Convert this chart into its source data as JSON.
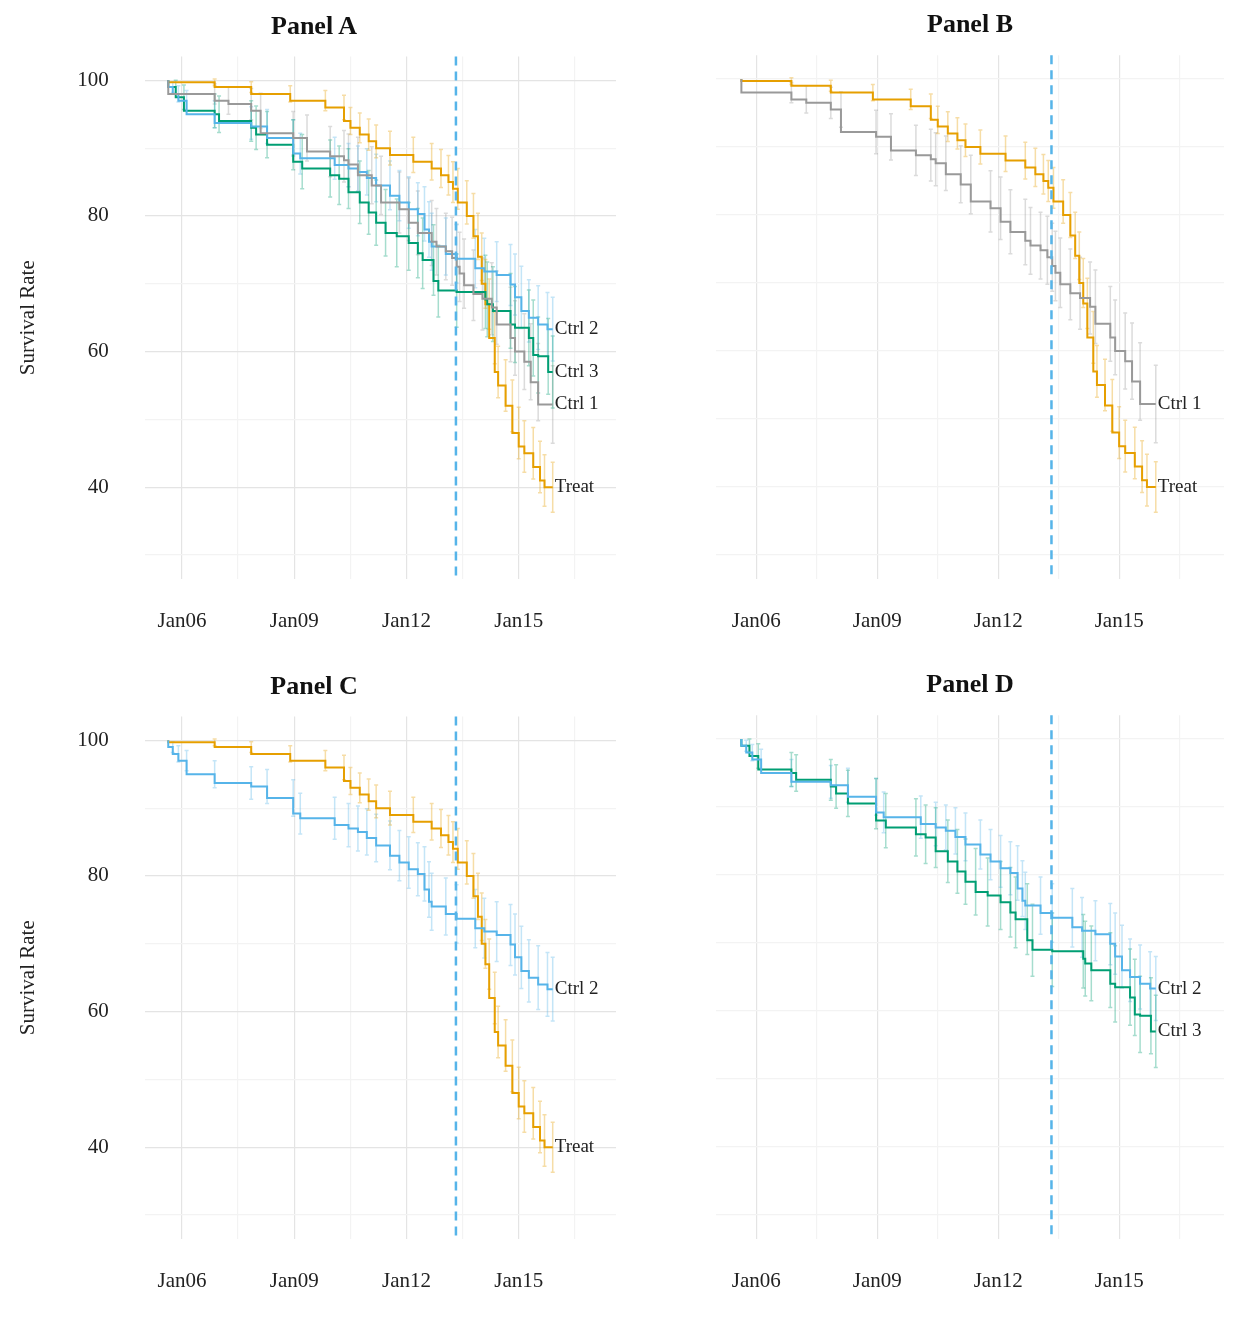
{
  "chart_data": [
    {
      "type": "step",
      "title": "Panel A",
      "ylabel": "Survival Rate",
      "xlim": [
        "2005-01-01",
        "2017-08-08"
      ],
      "ylim": [
        26.5,
        103.5
      ],
      "grid": true,
      "xticks": [
        {
          "value": "2006-01-01",
          "label": "Jan06"
        },
        {
          "value": "2007-07-02",
          "label": null
        },
        {
          "value": "2009-01-01",
          "label": "Jan09"
        },
        {
          "value": "2010-07-02",
          "label": null
        },
        {
          "value": "2012-01-01",
          "label": "Jan12"
        },
        {
          "value": "2013-07-02",
          "label": null
        },
        {
          "value": "2015-01-01",
          "label": "Jan15"
        },
        {
          "value": "2016-07-02",
          "label": null
        }
      ],
      "yticks": [
        {
          "value": 30,
          "label": null
        },
        40,
        {
          "value": 50,
          "label": null
        },
        60,
        {
          "value": 70,
          "label": null
        },
        80,
        {
          "value": 90,
          "label": null
        },
        100
      ],
      "ref_lines": [
        {
          "axis": "x",
          "value": "2013-04-28",
          "color": "#56b4e9",
          "line_style": "dashed"
        }
      ],
      "series": [
        {
          "name": "Ctrl 1",
          "color": "#999999",
          "x": [
            "2005-08-19",
            "2006-11-15",
            "2007-03-30",
            "2007-11-07",
            "2008-02-07",
            "2008-12-21",
            "2009-05-05",
            "2009-12-17",
            "2010-05-01",
            "2010-06-14",
            "2010-09-14",
            "2011-01-27",
            "2011-04-28",
            "2011-10-24",
            "2012-01-23",
            "2012-04-21",
            "2012-09-03",
            "2012-10-20",
            "2013-01-19",
            "2013-03-22",
            "2013-05-05",
            "2013-06-03",
            "2013-07-17",
            "2013-10-16",
            "2014-01-12",
            "2014-04-13",
            "2014-05-31",
            "2014-10-13",
            "2014-11-26",
            "2015-02-25",
            "2015-04-28",
            "2015-07-10",
            "2015-11-29"
          ],
          "values": [
            100,
            98,
            97,
            96.5,
            95.5,
            92.2,
            91.5,
            89.5,
            88.8,
            88.2,
            87.6,
            86,
            84.5,
            82,
            81,
            79,
            77.5,
            76.2,
            75.5,
            74.8,
            73.8,
            72.5,
            71.5,
            69.8,
            68.5,
            67.8,
            66.5,
            64,
            62,
            60,
            58.5,
            55.5,
            52.2
          ],
          "errors": [
            null,
            1.5,
            2,
            2.3,
            2.6,
            3.2,
            3.4,
            3.7,
            3.8,
            3.9,
            4,
            4.2,
            4.3,
            4.5,
            4.6,
            4.7,
            4.8,
            4.9,
            4.9,
            5,
            5,
            5.1,
            5.1,
            5.2,
            5.3,
            5.3,
            5.4,
            5.5,
            5.5,
            5.6,
            5.6,
            5.7,
            5.7
          ]
        },
        {
          "name": "Ctrl 2",
          "color": "#56b4e9",
          "x": [
            "2005-08-19",
            "2005-10-02",
            "2005-11-26",
            "2006-02-14",
            "2006-11-15",
            "2007-11-07",
            "2008-04-10",
            "2008-12-21",
            "2009-02-28",
            "2010-01-30",
            "2010-06-14",
            "2010-09-14",
            "2010-12-10",
            "2011-03-11",
            "2011-07-24",
            "2011-10-24",
            "2012-01-23",
            "2012-04-21",
            "2012-06-25",
            "2012-08-08",
            "2012-09-03",
            "2013-01-19",
            "2013-05-05",
            "2013-11-03",
            "2014-01-30",
            "2014-05-31",
            "2014-10-13",
            "2014-11-26",
            "2015-01-27",
            "2015-04-10",
            "2015-07-10",
            "2015-10-09",
            "2015-11-29"
          ],
          "values": [
            100,
            99,
            98,
            97,
            95,
            93.7,
            93.2,
            91.5,
            89.2,
            88.5,
            87.5,
            87,
            86.5,
            85.6,
            84.5,
            83,
            82,
            81,
            80.3,
            78,
            76.2,
            75.5,
            74.4,
            73.7,
            72.3,
            71.8,
            71.3,
            69.9,
            68,
            66,
            65,
            64,
            63.3
          ],
          "errors": [
            null,
            0.8,
            1.2,
            1.5,
            2,
            2.4,
            2.5,
            2.7,
            3,
            3.1,
            3.2,
            3.3,
            3.4,
            3.5,
            3.6,
            3.7,
            3.8,
            3.9,
            4,
            4.1,
            4.2,
            4.2,
            4.3,
            4.3,
            4.4,
            4.4,
            4.5,
            4.5,
            4.6,
            4.6,
            4.7,
            4.7,
            4.7
          ]
        },
        {
          "name": "Ctrl 3",
          "color": "#009e73",
          "x": [
            "2005-08-19",
            "2005-10-31",
            "2006-01-19",
            "2006-11-15",
            "2006-12-28",
            "2007-11-07",
            "2007-12-25",
            "2008-04-10",
            "2008-12-21",
            "2009-03-19",
            "2009-12-17",
            "2010-03-15",
            "2010-06-14",
            "2010-10-02",
            "2010-12-28",
            "2011-03-11",
            "2011-06-11",
            "2011-09-28",
            "2012-01-23",
            "2012-04-21",
            "2012-06-07",
            "2012-09-21",
            "2012-11-07",
            "2013-05-05",
            "2014-02-10",
            "2014-02-28",
            "2014-04-24",
            "2014-10-13",
            "2014-11-26",
            "2015-04-10",
            "2015-05-23",
            "2015-07-10",
            "2015-10-16",
            "2015-11-29"
          ],
          "values": [
            100,
            99,
            97.5,
            95.5,
            95,
            94,
            93,
            92,
            90.5,
            88,
            87,
            86,
            85.5,
            83.5,
            82,
            80.5,
            79,
            77.5,
            77,
            76,
            74.5,
            73.5,
            70.4,
            69,
            68.8,
            67.7,
            67,
            66,
            64,
            63.5,
            62,
            59.5,
            59.3,
            57
          ],
          "errors": [
            null,
            1,
            1.8,
            2.5,
            2.7,
            3,
            3.2,
            3.4,
            3.7,
            4,
            4.2,
            4.3,
            4.4,
            4.6,
            4.7,
            4.8,
            4.9,
            5,
            5,
            5.1,
            5.2,
            5.2,
            5.3,
            5.4,
            5.4,
            5.5,
            5.5,
            5.5,
            5.6,
            5.6,
            5.6,
            5.6,
            5.6,
            5.3
          ]
        },
        {
          "name": "Treat",
          "color": "#e69f00",
          "x": [
            "2005-08-19",
            "2006-11-15",
            "2007-11-07",
            "2008-11-22",
            "2009-10-31",
            "2010-05-01",
            "2010-07-03",
            "2010-10-02",
            "2010-12-28",
            "2011-03-11",
            "2011-07-24",
            "2012-03-08",
            "2012-09-03",
            "2012-12-03",
            "2013-02-14",
            "2013-03-30",
            "2013-05-16",
            "2013-08-12",
            "2013-10-16",
            "2013-11-29",
            "2014-01-05",
            "2014-02-10",
            "2014-03-19",
            "2014-05-12",
            "2014-06-14",
            "2014-08-26",
            "2014-10-31",
            "2015-01-01",
            "2015-02-25",
            "2015-05-23",
            "2015-07-28",
            "2015-09-10",
            "2015-11-29"
          ],
          "values": [
            100,
            99.7,
            99,
            98,
            97,
            96,
            94,
            93,
            92,
            91,
            90,
            89,
            88,
            87,
            86,
            85,
            84,
            82,
            80,
            77,
            74,
            70,
            67,
            62,
            57,
            55,
            52,
            48,
            46,
            45,
            43,
            41,
            40
          ],
          "errors": [
            null,
            0.5,
            0.8,
            1.2,
            1.5,
            1.8,
            2,
            2.2,
            2.3,
            2.4,
            2.5,
            2.6,
            2.7,
            2.8,
            2.9,
            3,
            3,
            3.2,
            3.3,
            3.4,
            3.5,
            3.6,
            3.7,
            3.8,
            3.8,
            3.8,
            3.8,
            3.8,
            3.8,
            3.8,
            3.8,
            3.8,
            3.7
          ]
        }
      ]
    },
    {
      "type": "step",
      "title": "Panel B",
      "xlim": [
        "2005-01-01",
        "2017-08-08"
      ],
      "ylim": [
        26.5,
        103.5
      ],
      "grid": true,
      "tick_labels": "x",
      "xticks": [
        {
          "value": "2006-01-01",
          "label": "Jan06"
        },
        {
          "value": "2007-07-02",
          "label": null
        },
        {
          "value": "2009-01-01",
          "label": "Jan09"
        },
        {
          "value": "2010-07-02",
          "label": null
        },
        {
          "value": "2012-01-01",
          "label": "Jan12"
        },
        {
          "value": "2013-07-02",
          "label": null
        },
        {
          "value": "2015-01-01",
          "label": "Jan15"
        },
        {
          "value": "2016-07-02",
          "label": null
        }
      ],
      "yticks": [
        {
          "value": 30,
          "label": null
        },
        {
          "value": 40,
          "label": null
        },
        {
          "value": 50,
          "label": null
        },
        {
          "value": 60,
          "label": null
        },
        {
          "value": 70,
          "label": null
        },
        {
          "value": 80,
          "label": null
        },
        {
          "value": 90,
          "label": null
        },
        {
          "value": 100,
          "label": null
        }
      ],
      "ref_lines": [
        {
          "axis": "x",
          "value": "2013-04-28",
          "color": "#56b4e9",
          "line_style": "dashed"
        }
      ],
      "series": [
        {
          "name": "Ctrl 1",
          "color": "#999999",
          "x": [
            "2005-08-19",
            "2006-11-15",
            "2007-03-30",
            "2007-11-07",
            "2008-02-07",
            "2008-12-21",
            "2009-05-05",
            "2009-12-17",
            "2010-05-01",
            "2010-06-14",
            "2010-09-14",
            "2011-01-27",
            "2011-04-28",
            "2011-10-24",
            "2012-01-23",
            "2012-04-21",
            "2012-09-03",
            "2012-10-20",
            "2013-01-19",
            "2013-03-22",
            "2013-05-05",
            "2013-06-03",
            "2013-07-17",
            "2013-10-16",
            "2014-01-12",
            "2014-04-13",
            "2014-05-31",
            "2014-10-13",
            "2014-11-26",
            "2015-02-25",
            "2015-04-28",
            "2015-07-10",
            "2015-11-29"
          ],
          "values": [
            100,
            98,
            97,
            96.5,
            95.5,
            92.2,
            91.5,
            89.5,
            88.8,
            88.2,
            87.6,
            86,
            84.5,
            82,
            81,
            79,
            77.5,
            76.2,
            75.5,
            74.8,
            73.8,
            72.5,
            71.5,
            69.8,
            68.5,
            67.8,
            66.5,
            64,
            62,
            60,
            58.5,
            55.5,
            52.2
          ],
          "errors": [
            null,
            1.5,
            2,
            2.3,
            2.6,
            3.2,
            3.4,
            3.7,
            3.8,
            3.9,
            4,
            4.2,
            4.3,
            4.5,
            4.6,
            4.7,
            4.8,
            4.9,
            4.9,
            5,
            5,
            5.1,
            5.1,
            5.2,
            5.3,
            5.3,
            5.4,
            5.5,
            5.5,
            5.6,
            5.6,
            5.7,
            5.7
          ]
        },
        {
          "name": "Treat",
          "color": "#e69f00",
          "x": [
            "2005-08-19",
            "2006-11-15",
            "2007-11-07",
            "2008-11-22",
            "2009-10-31",
            "2010-05-01",
            "2010-07-03",
            "2010-10-02",
            "2010-12-28",
            "2011-03-11",
            "2011-07-24",
            "2012-03-08",
            "2012-09-03",
            "2012-12-03",
            "2013-02-14",
            "2013-03-30",
            "2013-05-16",
            "2013-08-12",
            "2013-10-16",
            "2013-11-29",
            "2014-01-05",
            "2014-02-10",
            "2014-03-19",
            "2014-05-12",
            "2014-06-14",
            "2014-08-26",
            "2014-10-31",
            "2015-01-01",
            "2015-02-25",
            "2015-05-23",
            "2015-07-28",
            "2015-09-10",
            "2015-11-29"
          ],
          "values": [
            100,
            99.7,
            99,
            98,
            97,
            96,
            94,
            93,
            92,
            91,
            90,
            89,
            88,
            87,
            86,
            85,
            84,
            82,
            80,
            77,
            74,
            70,
            67,
            62,
            57,
            55,
            52,
            48,
            46,
            45,
            43,
            41,
            40
          ],
          "errors": [
            null,
            0.5,
            0.8,
            1.2,
            1.5,
            1.8,
            2,
            2.2,
            2.3,
            2.4,
            2.5,
            2.6,
            2.7,
            2.8,
            2.9,
            3,
            3,
            3.2,
            3.3,
            3.4,
            3.5,
            3.6,
            3.7,
            3.8,
            3.8,
            3.8,
            3.8,
            3.8,
            3.8,
            3.8,
            3.8,
            3.8,
            3.7
          ]
        }
      ]
    },
    {
      "type": "step",
      "title": "Panel C",
      "ylabel": "Survival Rate",
      "xlim": [
        "2005-01-01",
        "2017-08-08"
      ],
      "ylim": [
        26.5,
        103.5
      ],
      "grid": true,
      "xticks": [
        {
          "value": "2006-01-01",
          "label": "Jan06"
        },
        {
          "value": "2007-07-02",
          "label": null
        },
        {
          "value": "2009-01-01",
          "label": "Jan09"
        },
        {
          "value": "2010-07-02",
          "label": null
        },
        {
          "value": "2012-01-01",
          "label": "Jan12"
        },
        {
          "value": "2013-07-02",
          "label": null
        },
        {
          "value": "2015-01-01",
          "label": "Jan15"
        },
        {
          "value": "2016-07-02",
          "label": null
        }
      ],
      "yticks": [
        {
          "value": 30,
          "label": null
        },
        40,
        {
          "value": 50,
          "label": null
        },
        60,
        {
          "value": 70,
          "label": null
        },
        80,
        {
          "value": 90,
          "label": null
        },
        100
      ],
      "ref_lines": [
        {
          "axis": "x",
          "value": "2013-04-28",
          "color": "#56b4e9",
          "line_style": "dashed"
        }
      ],
      "series": [
        {
          "name": "Ctrl 2",
          "color": "#56b4e9",
          "x": [
            "2005-08-19",
            "2005-10-02",
            "2005-11-26",
            "2006-02-14",
            "2006-11-15",
            "2007-11-07",
            "2008-04-10",
            "2008-12-21",
            "2009-02-28",
            "2010-01-30",
            "2010-06-14",
            "2010-09-14",
            "2010-12-10",
            "2011-03-11",
            "2011-07-24",
            "2011-10-24",
            "2012-01-23",
            "2012-04-21",
            "2012-06-25",
            "2012-08-08",
            "2012-09-03",
            "2013-01-19",
            "2013-05-05",
            "2013-11-03",
            "2014-01-30",
            "2014-05-31",
            "2014-10-13",
            "2014-11-26",
            "2015-01-27",
            "2015-04-10",
            "2015-07-10",
            "2015-10-09",
            "2015-11-29"
          ],
          "values": [
            100,
            99,
            98,
            97,
            95,
            93.7,
            93.2,
            91.5,
            89.2,
            88.5,
            87.5,
            87,
            86.5,
            85.6,
            84.5,
            83,
            82,
            81,
            80.3,
            78,
            76.2,
            75.5,
            74.4,
            73.7,
            72.3,
            71.8,
            71.3,
            69.9,
            68,
            66,
            65,
            64,
            63.3
          ],
          "errors": [
            null,
            0.8,
            1.2,
            1.5,
            2,
            2.4,
            2.5,
            2.7,
            3,
            3.1,
            3.2,
            3.3,
            3.4,
            3.5,
            3.6,
            3.7,
            3.8,
            3.9,
            4,
            4.1,
            4.2,
            4.2,
            4.3,
            4.3,
            4.4,
            4.4,
            4.5,
            4.5,
            4.6,
            4.6,
            4.7,
            4.7,
            4.7
          ]
        },
        {
          "name": "Treat",
          "color": "#e69f00",
          "x": [
            "2005-08-19",
            "2006-11-15",
            "2007-11-07",
            "2008-11-22",
            "2009-10-31",
            "2010-05-01",
            "2010-07-03",
            "2010-10-02",
            "2010-12-28",
            "2011-03-11",
            "2011-07-24",
            "2012-03-08",
            "2012-09-03",
            "2012-12-03",
            "2013-02-14",
            "2013-03-30",
            "2013-05-16",
            "2013-08-12",
            "2013-10-16",
            "2013-11-29",
            "2014-01-05",
            "2014-02-10",
            "2014-03-19",
            "2014-05-12",
            "2014-06-14",
            "2014-08-26",
            "2014-10-31",
            "2015-01-01",
            "2015-02-25",
            "2015-05-23",
            "2015-07-28",
            "2015-09-10",
            "2015-11-29"
          ],
          "values": [
            100,
            99.7,
            99,
            98,
            97,
            96,
            94,
            93,
            92,
            91,
            90,
            89,
            88,
            87,
            86,
            85,
            84,
            82,
            80,
            77,
            74,
            70,
            67,
            62,
            57,
            55,
            52,
            48,
            46,
            45,
            43,
            41,
            40
          ],
          "errors": [
            null,
            0.5,
            0.8,
            1.2,
            1.5,
            1.8,
            2,
            2.2,
            2.3,
            2.4,
            2.5,
            2.6,
            2.7,
            2.8,
            2.9,
            3,
            3,
            3.2,
            3.3,
            3.4,
            3.5,
            3.6,
            3.7,
            3.8,
            3.8,
            3.8,
            3.8,
            3.8,
            3.8,
            3.8,
            3.8,
            3.8,
            3.7
          ]
        }
      ]
    },
    {
      "type": "step",
      "title": "Panel D",
      "xlim": [
        "2005-01-01",
        "2017-08-08"
      ],
      "ylim": [
        26.5,
        103.5
      ],
      "grid": true,
      "tick_labels": "x",
      "xticks": [
        {
          "value": "2006-01-01",
          "label": "Jan06"
        },
        {
          "value": "2007-07-02",
          "label": null
        },
        {
          "value": "2009-01-01",
          "label": "Jan09"
        },
        {
          "value": "2010-07-02",
          "label": null
        },
        {
          "value": "2012-01-01",
          "label": "Jan12"
        },
        {
          "value": "2013-07-02",
          "label": null
        },
        {
          "value": "2015-01-01",
          "label": "Jan15"
        },
        {
          "value": "2016-07-02",
          "label": null
        }
      ],
      "yticks": [
        {
          "value": 30,
          "label": null
        },
        {
          "value": 40,
          "label": null
        },
        {
          "value": 50,
          "label": null
        },
        {
          "value": 60,
          "label": null
        },
        {
          "value": 70,
          "label": null
        },
        {
          "value": 80,
          "label": null
        },
        {
          "value": 90,
          "label": null
        },
        {
          "value": 100,
          "label": null
        }
      ],
      "ref_lines": [
        {
          "axis": "x",
          "value": "2013-04-28",
          "color": "#56b4e9",
          "line_style": "dashed"
        }
      ],
      "series": [
        {
          "name": "Ctrl 2",
          "color": "#56b4e9",
          "x": [
            "2005-08-19",
            "2005-10-02",
            "2005-11-26",
            "2006-02-14",
            "2006-11-15",
            "2007-11-07",
            "2008-04-10",
            "2008-12-21",
            "2009-02-28",
            "2010-01-30",
            "2010-06-14",
            "2010-09-14",
            "2010-12-10",
            "2011-03-11",
            "2011-07-24",
            "2011-10-24",
            "2012-01-23",
            "2012-04-21",
            "2012-06-25",
            "2012-08-08",
            "2012-09-03",
            "2013-01-19",
            "2013-05-05",
            "2013-11-03",
            "2014-01-30",
            "2014-05-31",
            "2014-10-13",
            "2014-11-26",
            "2015-01-27",
            "2015-04-10",
            "2015-07-10",
            "2015-10-09",
            "2015-11-29"
          ],
          "values": [
            100,
            99,
            98,
            97,
            95,
            93.7,
            93.2,
            91.5,
            89.2,
            88.5,
            87.5,
            87,
            86.5,
            85.6,
            84.5,
            83,
            82,
            81,
            80.3,
            78,
            76.2,
            75.5,
            74.4,
            73.7,
            72.3,
            71.8,
            71.3,
            69.9,
            68,
            66,
            65,
            64,
            63.3
          ],
          "errors": [
            null,
            0.8,
            1.2,
            1.5,
            2,
            2.4,
            2.5,
            2.7,
            3,
            3.1,
            3.2,
            3.3,
            3.4,
            3.5,
            3.6,
            3.7,
            3.8,
            3.9,
            4,
            4.1,
            4.2,
            4.2,
            4.3,
            4.3,
            4.4,
            4.4,
            4.5,
            4.5,
            4.6,
            4.6,
            4.7,
            4.7,
            4.7
          ]
        },
        {
          "name": "Ctrl 3",
          "color": "#009e73",
          "x": [
            "2005-08-19",
            "2005-10-31",
            "2006-01-19",
            "2006-11-15",
            "2006-12-28",
            "2007-11-07",
            "2007-12-25",
            "2008-04-10",
            "2008-12-21",
            "2009-03-19",
            "2009-12-17",
            "2010-03-15",
            "2010-06-14",
            "2010-10-02",
            "2010-12-28",
            "2011-03-11",
            "2011-06-11",
            "2011-09-28",
            "2012-01-23",
            "2012-04-21",
            "2012-06-07",
            "2012-09-21",
            "2012-11-07",
            "2013-05-05",
            "2014-02-10",
            "2014-02-28",
            "2014-04-24",
            "2014-10-13",
            "2014-11-26",
            "2015-04-10",
            "2015-05-23",
            "2015-07-10",
            "2015-10-16",
            "2015-11-29"
          ],
          "values": [
            100,
            99,
            97.5,
            95.5,
            95,
            94,
            93,
            92,
            90.5,
            88,
            87,
            86,
            85.5,
            83.5,
            82,
            80.5,
            79,
            77.5,
            77,
            76,
            74.5,
            73.5,
            70.4,
            69,
            68.8,
            67.7,
            67,
            66,
            64,
            63.5,
            62,
            59.5,
            59.3,
            57
          ],
          "errors": [
            null,
            1,
            1.8,
            2.5,
            2.7,
            3,
            3.2,
            3.4,
            3.7,
            4,
            4.2,
            4.3,
            4.4,
            4.6,
            4.7,
            4.8,
            4.9,
            5,
            5,
            5.1,
            5.2,
            5.2,
            5.3,
            5.4,
            5.4,
            5.5,
            5.5,
            5.5,
            5.6,
            5.6,
            5.6,
            5.6,
            5.6,
            5.3
          ]
        }
      ]
    }
  ]
}
